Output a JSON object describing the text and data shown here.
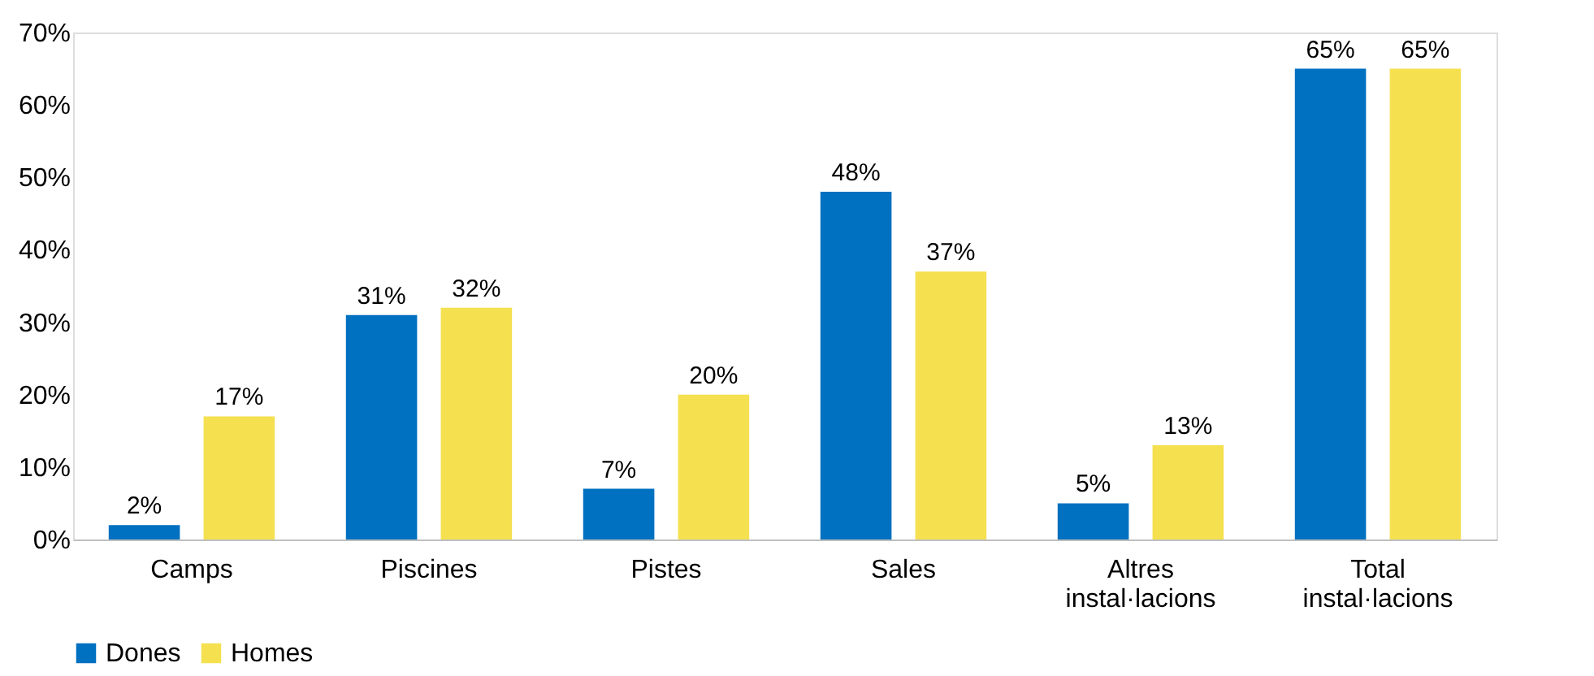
{
  "chart_data": {
    "type": "bar",
    "categories": [
      "Camps",
      "Piscines",
      "Pistes",
      "Sales",
      "Altres instal·lacions",
      "Total instal·lacions"
    ],
    "series": [
      {
        "name": "Dones",
        "color": "#0070c0",
        "values": [
          2,
          31,
          7,
          48,
          5,
          65
        ],
        "value_labels": [
          "2%",
          "31%",
          "7%",
          "48%",
          "5%",
          "65%"
        ]
      },
      {
        "name": "Homes",
        "color": "#f5e050",
        "values": [
          17,
          32,
          20,
          37,
          13,
          65
        ],
        "value_labels": [
          "17%",
          "32%",
          "20%",
          "37%",
          "13%",
          "65%"
        ]
      }
    ],
    "ylim": [
      0,
      70
    ],
    "yticks": [
      {
        "value": 0,
        "label": "0%"
      },
      {
        "value": 10,
        "label": "10%"
      },
      {
        "value": 20,
        "label": "20%"
      },
      {
        "value": 30,
        "label": "30%"
      },
      {
        "value": 40,
        "label": "40%"
      },
      {
        "value": 50,
        "label": "50%"
      },
      {
        "value": 60,
        "label": "60%"
      },
      {
        "value": 70,
        "label": "70%"
      }
    ],
    "grid": false,
    "legend": "bottom"
  }
}
